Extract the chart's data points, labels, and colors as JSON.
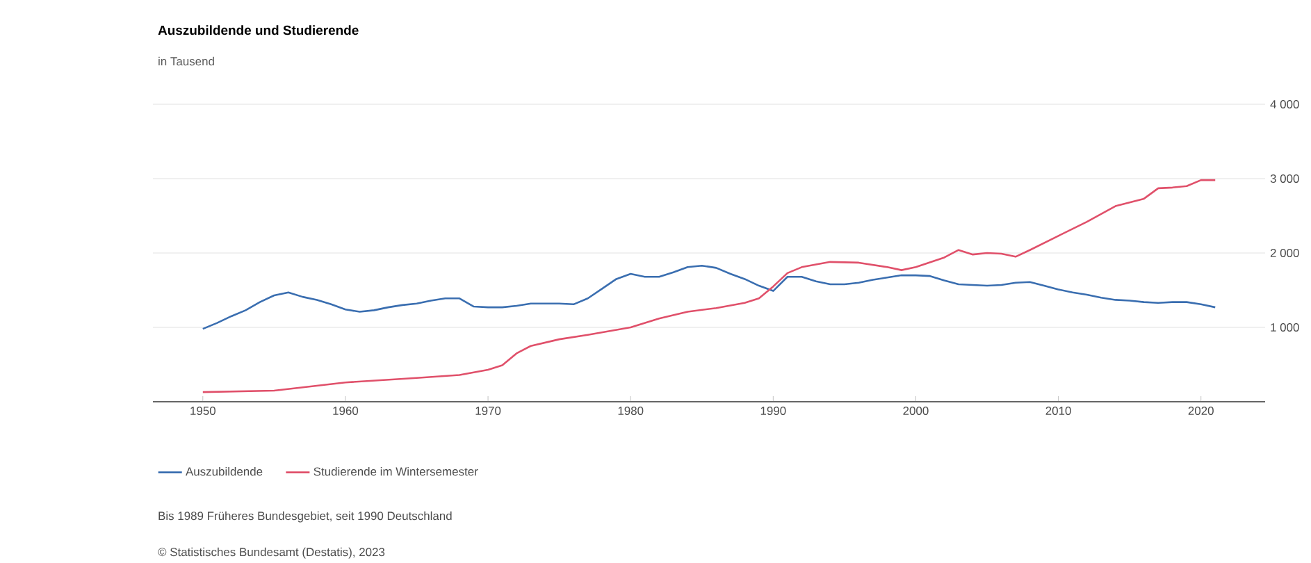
{
  "chart_data": {
    "type": "line",
    "title": "Auszubildende und Studierende",
    "subtitle": "in Tausend",
    "x": [
      1950,
      1951,
      1952,
      1953,
      1954,
      1955,
      1956,
      1957,
      1958,
      1959,
      1960,
      1961,
      1962,
      1963,
      1964,
      1965,
      1966,
      1967,
      1968,
      1969,
      1970,
      1971,
      1972,
      1973,
      1974,
      1975,
      1976,
      1977,
      1978,
      1979,
      1980,
      1981,
      1982,
      1983,
      1984,
      1985,
      1986,
      1987,
      1988,
      1989,
      1990,
      1991,
      1992,
      1993,
      1994,
      1995,
      1996,
      1997,
      1998,
      1999,
      2000,
      2001,
      2002,
      2003,
      2004,
      2005,
      2006,
      2007,
      2008,
      2009,
      2010,
      2011,
      2012,
      2013,
      2014,
      2015,
      2016,
      2017,
      2018,
      2019,
      2020,
      2021
    ],
    "series": [
      {
        "name": "Auszubildende",
        "color": "#3a6eb0",
        "values": [
          980,
          1060,
          1150,
          1230,
          1340,
          1430,
          1470,
          1410,
          1370,
          1310,
          1240,
          1210,
          1230,
          1270,
          1300,
          1320,
          1360,
          1390,
          1390,
          1280,
          1270,
          1270,
          1290,
          1320,
          1320,
          1320,
          1310,
          1390,
          1520,
          1650,
          1720,
          1680,
          1680,
          1740,
          1810,
          1830,
          1800,
          1720,
          1650,
          1560,
          1490,
          1680,
          1680,
          1620,
          1580,
          1580,
          1600,
          1640,
          1670,
          1700,
          1700,
          1690,
          1630,
          1580,
          1570,
          1560,
          1570,
          1600,
          1610,
          1560,
          1510,
          1470,
          1440,
          1400,
          1370,
          1360,
          1340,
          1330,
          1340,
          1340,
          1310,
          1270
        ]
      },
      {
        "name": "Studierende im Wintersemester",
        "color": "#e0506a",
        "x": [
          1950,
          1955,
          1960,
          1965,
          1968,
          1970,
          1971,
          1972,
          1973,
          1975,
          1977,
          1980,
          1982,
          1984,
          1986,
          1988,
          1989,
          1990,
          1991,
          1992,
          1994,
          1996,
          1998,
          1999,
          2000,
          2002,
          2003,
          2004,
          2005,
          2006,
          2007,
          2008,
          2010,
          2012,
          2014,
          2016,
          2017,
          2018,
          2019,
          2020,
          2021
        ],
        "values": [
          130,
          150,
          260,
          320,
          360,
          430,
          490,
          650,
          750,
          840,
          900,
          1000,
          1120,
          1210,
          1260,
          1330,
          1390,
          1550,
          1730,
          1810,
          1880,
          1870,
          1810,
          1770,
          1810,
          1940,
          2040,
          1980,
          2000,
          1990,
          1950,
          2040,
          2230,
          2420,
          2630,
          2730,
          2870,
          2880,
          2900,
          2980,
          2980
        ]
      }
    ],
    "xlim": [
      1946.5,
      2024.5
    ],
    "ylim": [
      0,
      4000
    ],
    "xticks": [
      1950,
      1960,
      1970,
      1980,
      1990,
      2000,
      2010,
      2020
    ],
    "yticks": [
      {
        "value": 1000,
        "label": "1 000"
      },
      {
        "value": 2000,
        "label": "2 000"
      },
      {
        "value": 3000,
        "label": "3 000"
      },
      {
        "value": 4000,
        "label": "4 000"
      }
    ],
    "grid": "y",
    "legend": "bottom",
    "annotations": [
      "Bis 1989 Früheres Bundesgebiet, seit 1990 Deutschland",
      "© Statistisches Bundesamt (Destatis), 2023"
    ]
  }
}
